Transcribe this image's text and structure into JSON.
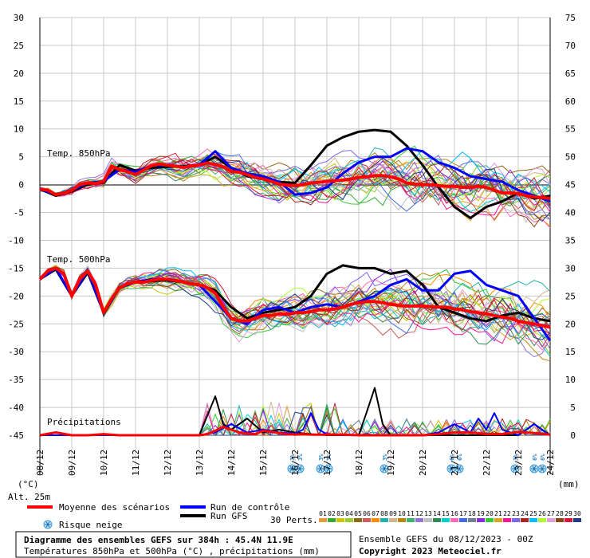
{
  "chart_data": {
    "type": "line",
    "title": "Diagramme des ensembles GEFS sur 384h : 45.4N 11.9E",
    "subtitle": "Températures 850hPa et 500hPa (°C) , précipitations (mm)",
    "ensemble_info": "Ensemble GEFS du 08/12/2023 - 00Z",
    "copyright": "Copyright 2023 Meteociel.fr",
    "left_axis": {
      "unit_label": "(°C)",
      "ticks": [
        30,
        25,
        20,
        15,
        10,
        5,
        0,
        -5,
        -10,
        -15,
        -20,
        -25,
        -30,
        -35,
        -40,
        -45
      ],
      "range": [
        -45,
        30
      ]
    },
    "right_axis": {
      "unit_label": "(mm)",
      "ticks": [
        75,
        70,
        65,
        60,
        55,
        50,
        45,
        40,
        35,
        30,
        25,
        20,
        15,
        10,
        5,
        0
      ],
      "range": [
        0,
        75
      ]
    },
    "x_labels": [
      "08/12",
      "09/12",
      "10/12",
      "11/12",
      "12/12",
      "13/12",
      "14/12",
      "15/12",
      "16/12",
      "17/12",
      "18/12",
      "19/12",
      "20/12",
      "21/12",
      "22/12",
      "23/12",
      "24/12"
    ],
    "alt_label": "Alt. 25m",
    "panel_labels": {
      "t850": "Temp. 850hPa",
      "t500": "Temp. 500hPa",
      "precip": "Précipitations"
    },
    "legend": {
      "mean": "Moyenne des scénarios",
      "control": "Run de contrôle",
      "gfs": "Run GFS",
      "snow": "Risque neige",
      "perts": "30 Perts."
    },
    "colors": {
      "mean": "#ff0000",
      "control": "#0000ff",
      "gfs": "#000000"
    },
    "pert_numbers": [
      "01",
      "02",
      "03",
      "04",
      "05",
      "06",
      "07",
      "08",
      "09",
      "10",
      "11",
      "12",
      "13",
      "14",
      "15",
      "16",
      "17",
      "18",
      "19",
      "20",
      "21",
      "22",
      "23",
      "24",
      "25",
      "26",
      "27",
      "28",
      "29",
      "30"
    ],
    "pert_colors": [
      "#e89a3a",
      "#33aa33",
      "#c8c800",
      "#9acd32",
      "#8b6914",
      "#cd5c5c",
      "#ff8c00",
      "#20b2aa",
      "#d2b48c",
      "#b8860b",
      "#3cb371",
      "#9370db",
      "#c0c0c0",
      "#2e8b57",
      "#00ced1",
      "#ff69b4",
      "#4169e1",
      "#708090",
      "#8a2be2",
      "#32cd32",
      "#daa520",
      "#ff1493",
      "#7b68ee",
      "#b22222",
      "#00bfff",
      "#adff2f",
      "#dda0dd",
      "#8b4513",
      "#dc143c",
      "#1e3c8c"
    ],
    "snow_risk": [
      {
        "x": 7.9,
        "labels": [
          "3%",
          "3%"
        ]
      },
      {
        "x": 8.8,
        "labels": [
          "3%",
          "3%"
        ]
      },
      {
        "x": 10.8,
        "labels": [
          "3%"
        ]
      },
      {
        "x": 12.9,
        "labels": [
          "6%",
          "6%"
        ]
      },
      {
        "x": 14.9,
        "labels": [
          "3%"
        ]
      },
      {
        "x": 15.5,
        "labels": [
          "6%",
          "6%"
        ]
      }
    ],
    "series": [
      {
        "name": "Moyenne des scénarios (850hPa)",
        "x": [
          0,
          0.25,
          0.5,
          0.75,
          1,
          1.25,
          1.5,
          1.75,
          2,
          2.25,
          2.5,
          2.75,
          3,
          3.25,
          3.5,
          3.75,
          4,
          4.25,
          4.5,
          4.75,
          5,
          5.25,
          5.5,
          5.75,
          6,
          6.25,
          6.5,
          6.75,
          7,
          7.25,
          7.5,
          7.75,
          8,
          8.25,
          8.5,
          8.75,
          9,
          9.25,
          9.5,
          9.75,
          10,
          10.25,
          10.5,
          10.75,
          11,
          11.25,
          11.5,
          11.75,
          12,
          12.25,
          12.5,
          12.75,
          13,
          13.25,
          13.5,
          13.75,
          14,
          14.25,
          14.5,
          14.75,
          15,
          15.25,
          15.5,
          15.75,
          16
        ],
        "values": [
          -0.8,
          -1,
          -1.8,
          -1.5,
          -1,
          0,
          0.3,
          0.2,
          0.6,
          3.3,
          2.7,
          2.3,
          1.8,
          2.6,
          3.4,
          3.7,
          3.5,
          3.3,
          3.1,
          3.3,
          3.5,
          3.9,
          3.6,
          3.2,
          2.4,
          2.2,
          1.8,
          1.3,
          1,
          0.6,
          0.1,
          -0.1,
          -0.2,
          0,
          0.3,
          0.4,
          0.6,
          0.7,
          0.8,
          1,
          1.3,
          1.4,
          1.6,
          1.6,
          1.4,
          1,
          0.3,
          0.1,
          0,
          0,
          -0.2,
          -0.3,
          -0.3,
          -0.5,
          -0.5,
          -0.3,
          -0.5,
          -1,
          -1.5,
          -1.5,
          -1.6,
          -2,
          -2.2,
          -2.3,
          -2.5
        ]
      },
      {
        "name": "Run de contrôle (850hPa)",
        "x": [
          0,
          0.5,
          1,
          1.5,
          2,
          2.5,
          3,
          3.5,
          4,
          4.5,
          5,
          5.5,
          6,
          6.5,
          7,
          7.5,
          8,
          8.5,
          9,
          9.5,
          10,
          10.5,
          11,
          11.5,
          12,
          12.5,
          13,
          13.5,
          14,
          14.5,
          15,
          15.5,
          16
        ],
        "values": [
          -0.8,
          -1.8,
          -1,
          0.3,
          0.6,
          2.7,
          2.3,
          3.4,
          3.5,
          3.1,
          3.5,
          6,
          3,
          2,
          1.5,
          0.5,
          -1.8,
          -1.5,
          -0.5,
          2,
          4,
          5,
          5,
          6.5,
          6,
          4,
          3,
          1.5,
          1,
          0.5,
          -1,
          -2,
          -3
        ]
      },
      {
        "name": "Run GFS (850hPa)",
        "x": [
          0,
          0.5,
          1,
          1.5,
          2,
          2.5,
          3,
          3.5,
          4,
          4.5,
          5,
          5.5,
          6,
          6.5,
          7,
          7.5,
          8,
          8.5,
          9,
          9.5,
          10,
          10.5,
          11,
          11.5,
          12,
          12.5,
          13,
          13.5,
          14,
          14.5,
          15,
          15.5,
          16
        ],
        "values": [
          -0.8,
          -2,
          -1.2,
          0,
          0.4,
          3.5,
          2.5,
          3,
          3.2,
          3.3,
          3.5,
          5,
          3,
          1.5,
          1,
          0.5,
          0.3,
          3.5,
          7,
          8.5,
          9.5,
          9.8,
          9.5,
          7,
          3.5,
          -0.5,
          -4,
          -6,
          -4,
          -3,
          -1.5,
          -2.5,
          -2
        ]
      },
      {
        "name": "Moyenne des scénarios (500hPa)",
        "x": [
          0,
          0.25,
          0.5,
          0.75,
          1,
          1.25,
          1.5,
          1.75,
          2,
          2.25,
          2.5,
          2.75,
          3,
          3.25,
          3.5,
          3.75,
          4,
          4.25,
          4.5,
          4.75,
          5,
          5.25,
          5.5,
          5.75,
          6,
          6.25,
          6.5,
          6.75,
          7,
          7.25,
          7.5,
          7.75,
          8,
          8.25,
          8.5,
          8.75,
          9,
          9.25,
          9.5,
          9.75,
          10,
          10.25,
          10.5,
          10.75,
          11,
          11.25,
          11.5,
          11.75,
          12,
          12.25,
          12.5,
          12.75,
          13,
          13.25,
          13.5,
          13.75,
          14,
          14.25,
          14.5,
          14.75,
          15,
          15.25,
          15.5,
          15.75,
          16
        ],
        "values": [
          -17,
          -15.5,
          -15,
          -16,
          -20,
          -17,
          -15.5,
          -18,
          -23,
          -20.5,
          -18.5,
          -17.8,
          -17.5,
          -17.5,
          -17.2,
          -17,
          -17,
          -17.2,
          -17.5,
          -17.8,
          -18,
          -18.5,
          -19.5,
          -22,
          -24,
          -24.5,
          -24.5,
          -24,
          -23.5,
          -23.5,
          -23.2,
          -23.3,
          -23,
          -23,
          -22.8,
          -22.5,
          -22.5,
          -22.3,
          -22,
          -21.5,
          -21.2,
          -21,
          -21,
          -21.2,
          -21.5,
          -21.7,
          -21.8,
          -21.8,
          -21.8,
          -21.9,
          -22,
          -22,
          -22.3,
          -22.5,
          -22.8,
          -23,
          -23.2,
          -23.5,
          -23.8,
          -24,
          -24.5,
          -24.8,
          -25,
          -25.3,
          -25.6
        ]
      },
      {
        "name": "Run de contrôle (500hPa)",
        "x": [
          0,
          0.5,
          1,
          1.5,
          2,
          2.5,
          3,
          3.5,
          4,
          4.5,
          5,
          5.5,
          6,
          6.5,
          7,
          7.5,
          8,
          8.5,
          9,
          9.5,
          10,
          10.5,
          11,
          11.5,
          12,
          12.5,
          13,
          13.5,
          14,
          14.5,
          15,
          15.5,
          16
        ],
        "values": [
          -17,
          -15,
          -20,
          -15.5,
          -23,
          -18.5,
          -17.5,
          -17,
          -17,
          -17.5,
          -18,
          -21,
          -24,
          -25,
          -22.5,
          -22,
          -23,
          -22,
          -21.5,
          -22,
          -21,
          -20,
          -18,
          -17,
          -19,
          -19,
          -16,
          -15.5,
          -18,
          -19,
          -20,
          -24,
          -28
        ]
      },
      {
        "name": "Run GFS (500hPa)",
        "x": [
          0,
          0.5,
          1,
          1.5,
          2,
          2.5,
          3,
          3.5,
          4,
          4.5,
          5,
          5.5,
          6,
          6.5,
          7,
          7.5,
          8,
          8.5,
          9,
          9.5,
          10,
          10.5,
          11,
          11.5,
          12,
          12.5,
          13,
          13.5,
          14,
          14.5,
          15,
          15.5,
          16
        ],
        "values": [
          -17,
          -15.2,
          -20,
          -15.8,
          -23,
          -18.5,
          -17.5,
          -17.3,
          -17.2,
          -17.5,
          -18,
          -19,
          -22,
          -24,
          -23,
          -22.5,
          -22,
          -20,
          -16,
          -14.5,
          -15,
          -15,
          -16,
          -15.5,
          -18,
          -22,
          -23,
          -24,
          -24.5,
          -23.5,
          -23,
          -24,
          -24.5
        ]
      },
      {
        "name": "Moyenne des scénarios (précipitations mm)",
        "x": [
          0,
          0.5,
          1,
          1.5,
          2,
          2.5,
          3,
          3.5,
          4,
          4.5,
          5,
          5.25,
          5.5,
          5.75,
          6,
          6.25,
          6.5,
          6.75,
          7,
          7.25,
          7.5,
          7.75,
          8,
          8.25,
          8.5,
          8.75,
          9,
          9.5,
          10,
          10.5,
          11,
          11.5,
          12,
          12.5,
          13,
          13.5,
          14,
          14.5,
          15,
          15.5,
          16
        ],
        "values": [
          0,
          0.5,
          0,
          0,
          0.2,
          0,
          0,
          0,
          0,
          0,
          0,
          0.2,
          0.8,
          1.5,
          1,
          0.5,
          0.3,
          0.2,
          0.8,
          0.6,
          0.4,
          0.2,
          0.1,
          0.2,
          0.1,
          0.1,
          0.1,
          0.1,
          0,
          0,
          0,
          0,
          0,
          0.2,
          0.5,
          0.5,
          0.2,
          0.2,
          0.6,
          0.4,
          0.1
        ]
      },
      {
        "name": "Run de contrôle (précipitations mm)",
        "x": [
          0,
          1,
          2,
          3,
          4,
          5,
          5.5,
          6,
          6.5,
          7,
          7.5,
          8,
          8.25,
          8.5,
          8.75,
          9,
          9.5,
          10,
          10.5,
          11,
          11.5,
          12,
          12.5,
          13,
          13.5,
          13.75,
          14,
          14.25,
          14.5,
          15,
          15.5,
          15.75,
          16
        ],
        "values": [
          0,
          0,
          0,
          0,
          0,
          0,
          0.5,
          2,
          0.5,
          1,
          0.5,
          0.3,
          1,
          4,
          1,
          0.2,
          0,
          0,
          0,
          0,
          0,
          0,
          0.5,
          2,
          0.5,
          3,
          1,
          4,
          1,
          0,
          2,
          1,
          0
        ]
      },
      {
        "name": "Run GFS (précipitations mm)",
        "x": [
          0,
          1,
          2,
          3,
          4,
          5,
          5.25,
          5.5,
          5.75,
          6,
          6.5,
          7,
          7.5,
          8,
          8.5,
          9,
          9.5,
          10,
          10.25,
          10.5,
          10.75,
          11,
          12,
          13,
          14,
          15,
          15.5,
          16
        ],
        "values": [
          0,
          0,
          0,
          0,
          0,
          0,
          3.5,
          7,
          2,
          1,
          3,
          0.5,
          1,
          0.5,
          0.2,
          0,
          0,
          0,
          4.2,
          8.5,
          2,
          0,
          0,
          0,
          0,
          0,
          2,
          0
        ]
      }
    ]
  }
}
